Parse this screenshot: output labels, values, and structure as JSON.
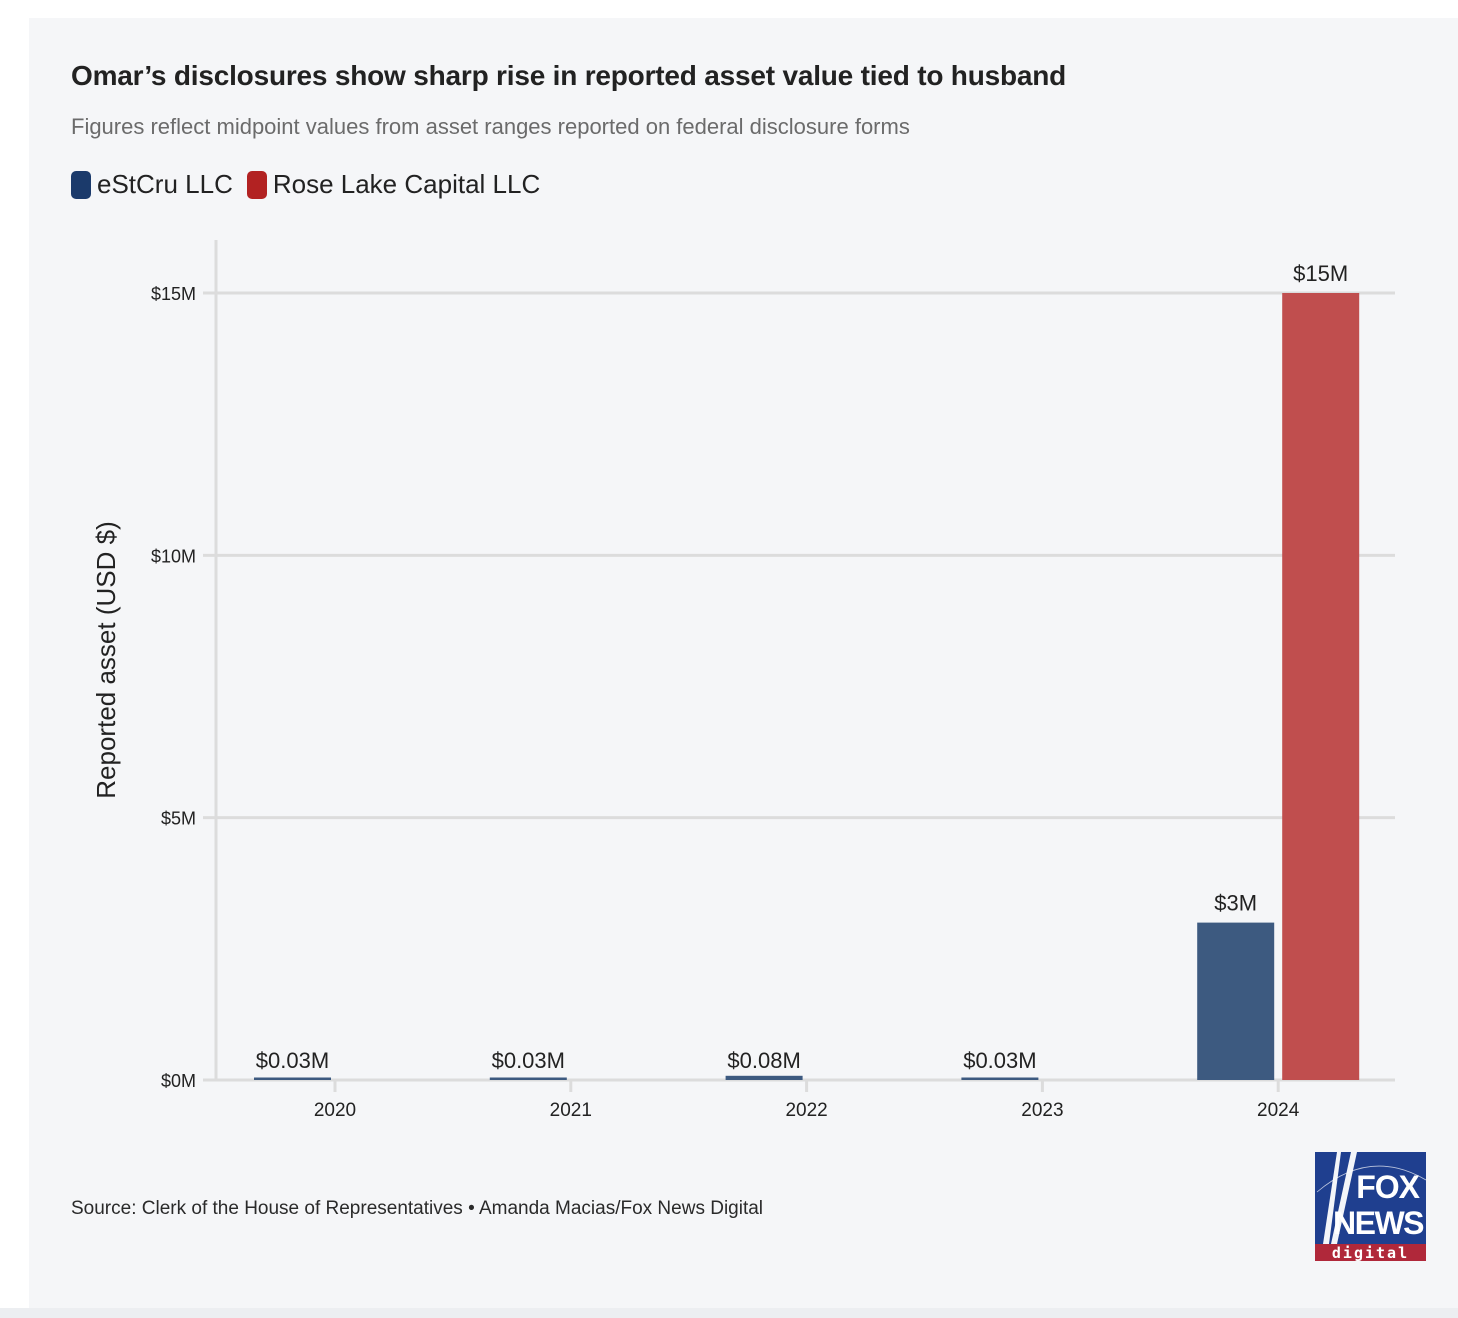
{
  "header": {
    "title": "Omar’s disclosures show sharp rise in reported asset value tied to husband",
    "subtitle": "Figures reflect midpoint values from asset ranges reported on federal disclosure forms"
  },
  "legend": [
    {
      "label": "eStCru LLC",
      "color": "#1b3a6b"
    },
    {
      "label": "Rose Lake Capital LLC",
      "color": "#b22222"
    }
  ],
  "footer": {
    "source": "Source: Clerk of the House of Representatives • Amanda Macias/Fox News Digital"
  },
  "logo": {
    "name": "fox-news-digital-logo",
    "line1": "FOX",
    "line2": "NEWS",
    "line3": "digital",
    "colors": {
      "blue": "#1f3f8f",
      "red": "#b0283a",
      "white": "#ffffff"
    }
  },
  "chart_data": {
    "type": "bar",
    "title": "Omar’s disclosures show sharp rise in reported asset value tied to husband",
    "subtitle": "Figures reflect midpoint values from asset ranges reported on federal disclosure forms",
    "xlabel": "",
    "ylabel": "Reported asset (USD $)",
    "categories": [
      "2020",
      "2021",
      "2022",
      "2023",
      "2024"
    ],
    "series": [
      {
        "name": "eStCru LLC",
        "color": "#3d5a80",
        "values": [
          0.03,
          0.03,
          0.08,
          0.03,
          3
        ],
        "labels": [
          "$0.03M",
          "$0.03M",
          "$0.08M",
          "$0.03M",
          "$3M"
        ]
      },
      {
        "name": "Rose Lake Capital LLC",
        "color": "#c04e4e",
        "values": [
          null,
          null,
          null,
          null,
          15
        ],
        "labels": [
          null,
          null,
          null,
          null,
          "$15M"
        ]
      }
    ],
    "ylim": [
      0,
      16
    ],
    "yticks": [
      0,
      5,
      10,
      15
    ],
    "ytick_labels": [
      "$0M",
      "$5M",
      "$10M",
      "$15M"
    ],
    "units": "USD millions",
    "grid": true,
    "legend_position": "top-left"
  }
}
